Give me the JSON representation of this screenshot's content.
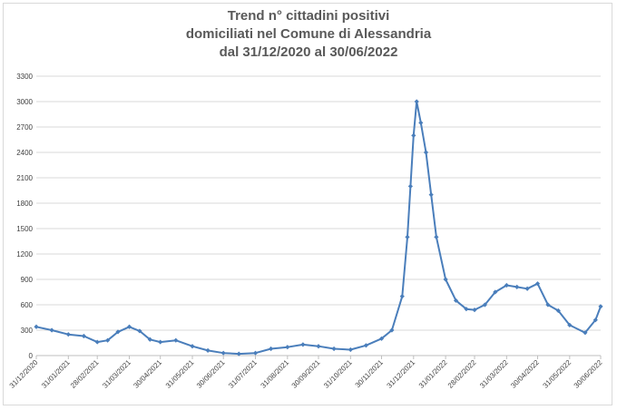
{
  "chart_data": {
    "type": "line",
    "title_lines": [
      "Trend n° cittadini positivi",
      "domiciliati nel Comune di Alessandria",
      "dal 31/12/2020 al 30/06/2022"
    ],
    "xlabel": "",
    "ylabel": "",
    "ylim": [
      0,
      3300
    ],
    "yticks": [
      0,
      300,
      600,
      900,
      1200,
      1500,
      1800,
      2100,
      2400,
      2700,
      3000,
      3300
    ],
    "grid": true,
    "legend": "none",
    "line_color": "#4a7ebb",
    "x_tick_labels": [
      "31/12/2020",
      "31/01/2021",
      "28/02/2021",
      "31/03/2021",
      "30/04/2021",
      "31/05/2021",
      "30/06/2021",
      "31/07/2021",
      "31/08/2021",
      "30/09/2021",
      "31/10/2021",
      "30/11/2021",
      "31/12/2021",
      "31/01/2022",
      "28/02/2022",
      "31/03/2022",
      "30/04/2022",
      "31/05/2022",
      "30/06/2022"
    ],
    "x_tick_days": [
      0,
      31,
      59,
      90,
      120,
      151,
      181,
      212,
      243,
      273,
      304,
      334,
      365,
      396,
      424,
      455,
      485,
      516,
      546
    ],
    "series": [
      {
        "points": [
          [
            "31/12/2020",
            340
          ],
          [
            "15/01/2021",
            300
          ],
          [
            "31/01/2021",
            250
          ],
          [
            "15/02/2021",
            230
          ],
          [
            "28/02/2021",
            160
          ],
          [
            "10/03/2021",
            180
          ],
          [
            "20/03/2021",
            280
          ],
          [
            "31/03/2021",
            340
          ],
          [
            "10/04/2021",
            290
          ],
          [
            "20/04/2021",
            190
          ],
          [
            "30/04/2021",
            160
          ],
          [
            "15/05/2021",
            180
          ],
          [
            "31/05/2021",
            110
          ],
          [
            "15/06/2021",
            60
          ],
          [
            "30/06/2021",
            30
          ],
          [
            "15/07/2021",
            20
          ],
          [
            "31/07/2021",
            30
          ],
          [
            "15/08/2021",
            80
          ],
          [
            "31/08/2021",
            100
          ],
          [
            "15/09/2021",
            130
          ],
          [
            "30/09/2021",
            110
          ],
          [
            "15/10/2021",
            80
          ],
          [
            "31/10/2021",
            70
          ],
          [
            "15/11/2021",
            120
          ],
          [
            "30/11/2021",
            200
          ],
          [
            "10/12/2021",
            300
          ],
          [
            "20/12/2021",
            700
          ],
          [
            "25/12/2021",
            1400
          ],
          [
            "28/12/2021",
            2000
          ],
          [
            "31/12/2021",
            2600
          ],
          [
            "03/01/2022",
            3000
          ],
          [
            "07/01/2022",
            2750
          ],
          [
            "12/01/2022",
            2400
          ],
          [
            "17/01/2022",
            1900
          ],
          [
            "22/01/2022",
            1400
          ],
          [
            "31/01/2022",
            900
          ],
          [
            "10/02/2022",
            650
          ],
          [
            "20/02/2022",
            550
          ],
          [
            "28/02/2022",
            540
          ],
          [
            "10/03/2022",
            600
          ],
          [
            "20/03/2022",
            750
          ],
          [
            "31/03/2022",
            830
          ],
          [
            "10/04/2022",
            810
          ],
          [
            "20/04/2022",
            790
          ],
          [
            "30/04/2022",
            850
          ],
          [
            "10/05/2022",
            600
          ],
          [
            "20/05/2022",
            530
          ],
          [
            "31/05/2022",
            360
          ],
          [
            "15/06/2022",
            270
          ],
          [
            "25/06/2022",
            420
          ],
          [
            "30/06/2022",
            580
          ]
        ]
      }
    ]
  }
}
